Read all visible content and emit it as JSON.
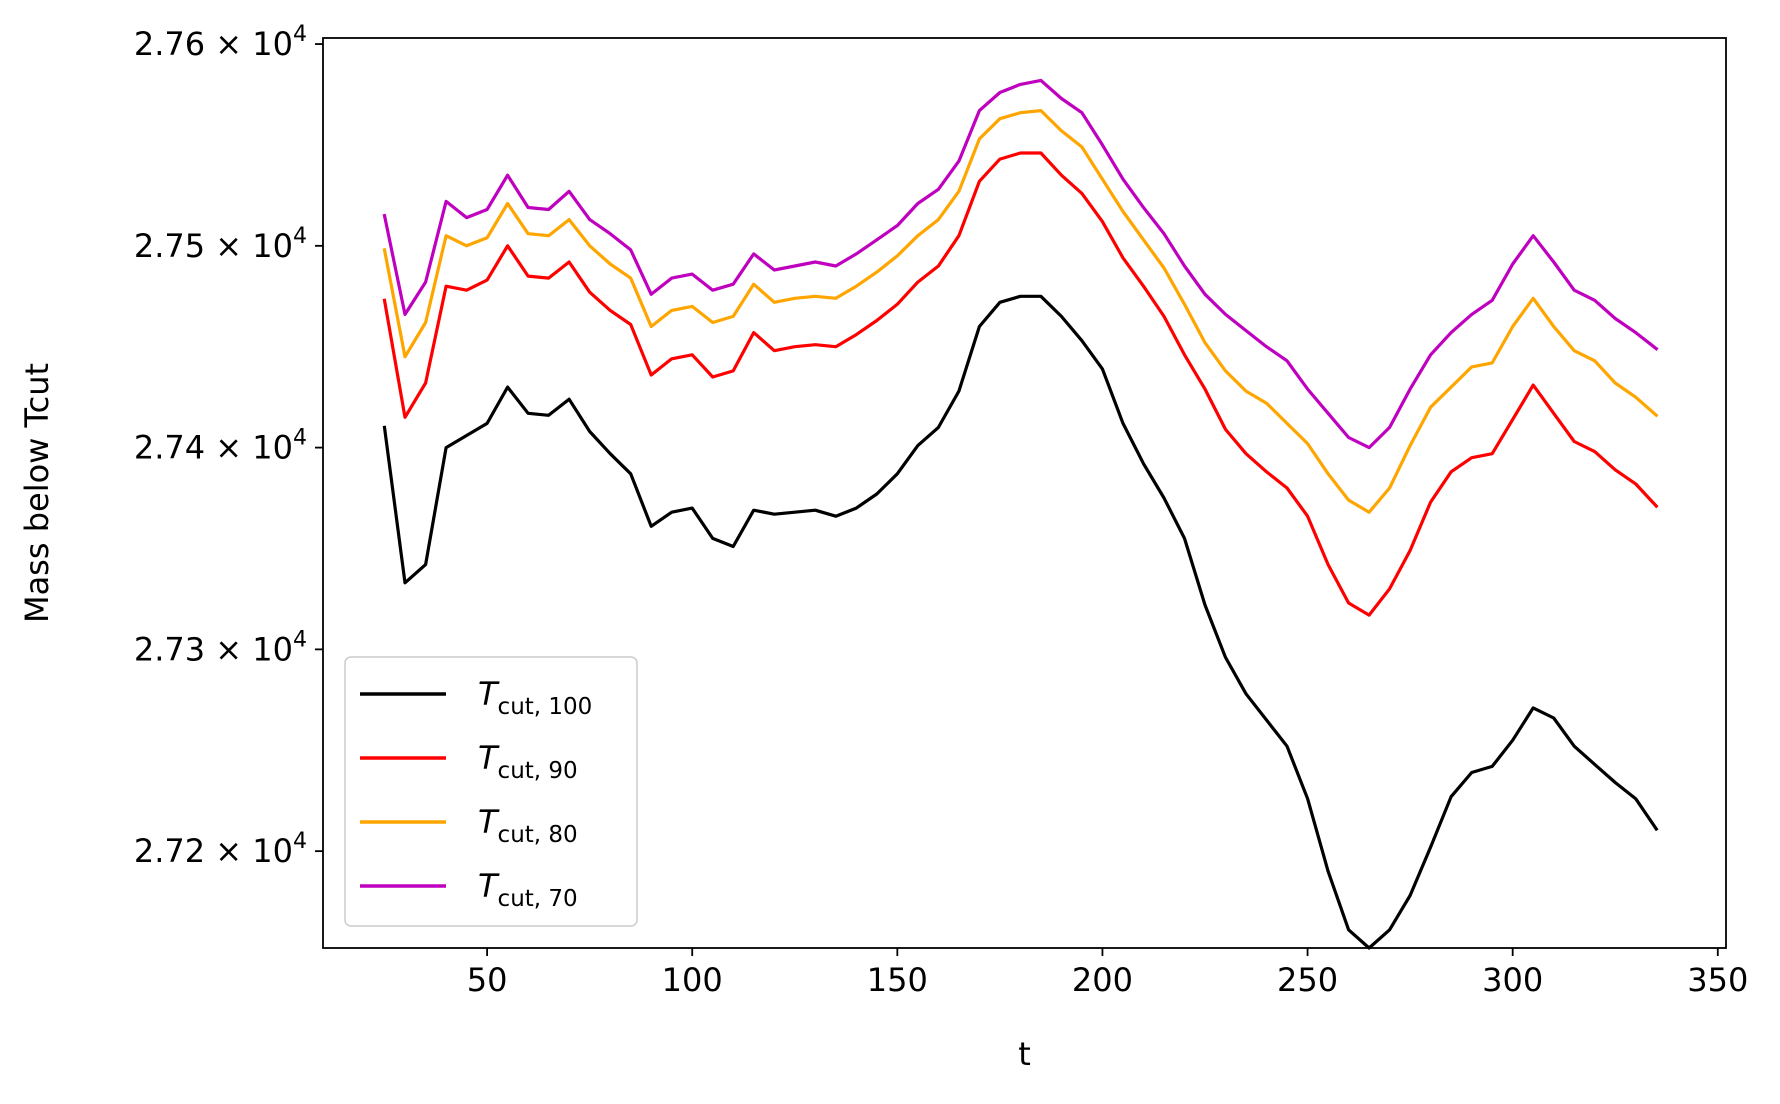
{
  "chart_data": {
    "type": "line",
    "title": "",
    "xlabel": "t",
    "ylabel": "Mass below Tcut",
    "xlim": [
      10,
      352
    ],
    "ylim": [
      27152,
      27603
    ],
    "xticks": [
      50,
      100,
      150,
      200,
      250,
      300,
      350
    ],
    "xtick_labels": [
      "50",
      "100",
      "150",
      "200",
      "250",
      "300",
      "350"
    ],
    "yticks": [
      27200,
      27300,
      27400,
      27500,
      27600
    ],
    "ytick_labels": [
      {
        "mantissa": "2.72",
        "times": "×",
        "base": "10",
        "exp": "4"
      },
      {
        "mantissa": "2.73",
        "times": "×",
        "base": "10",
        "exp": "4"
      },
      {
        "mantissa": "2.74",
        "times": "×",
        "base": "10",
        "exp": "4"
      },
      {
        "mantissa": "2.75",
        "times": "×",
        "base": "10",
        "exp": "4"
      },
      {
        "mantissa": "2.76",
        "times": "×",
        "base": "10",
        "exp": "4"
      }
    ],
    "grid": false,
    "legend_position": "lower-left",
    "x": [
      25,
      30,
      35,
      40,
      45,
      50,
      55,
      60,
      65,
      70,
      75,
      80,
      85,
      90,
      95,
      100,
      105,
      110,
      115,
      120,
      125,
      130,
      135,
      140,
      145,
      150,
      155,
      160,
      165,
      170,
      175,
      180,
      185,
      190,
      195,
      200,
      205,
      210,
      215,
      220,
      225,
      230,
      235,
      240,
      245,
      250,
      255,
      260,
      265,
      270,
      275,
      280,
      285,
      290,
      295,
      300,
      305,
      310,
      315,
      320,
      325,
      330,
      335
    ],
    "series": [
      {
        "name": "T",
        "sub": "cut, 100",
        "color": "#000000",
        "values": [
          27410,
          27333,
          27342,
          27400,
          27406,
          27412,
          27430,
          27417,
          27416,
          27424,
          27408,
          27397,
          27387,
          27361,
          27368,
          27370,
          27355,
          27351,
          27369,
          27367,
          27368,
          27369,
          27366,
          27370,
          27377,
          27387,
          27401,
          27410,
          27428,
          27460,
          27472,
          27475,
          27475,
          27465,
          27453,
          27439,
          27412,
          27392,
          27375,
          27355,
          27322,
          27296,
          27278,
          27265,
          27252,
          27226,
          27190,
          27161,
          27152,
          27161,
          27178,
          27202,
          27227,
          27239,
          27242,
          27255,
          27271,
          27266,
          27252,
          27243,
          27234,
          27226,
          27211
        ]
      },
      {
        "name": "T",
        "sub": "cut, 90",
        "color": "#ff0000",
        "values": [
          27473,
          27415,
          27432,
          27480,
          27478,
          27483,
          27500,
          27485,
          27484,
          27492,
          27477,
          27468,
          27461,
          27436,
          27444,
          27446,
          27435,
          27438,
          27457,
          27448,
          27450,
          27451,
          27450,
          27456,
          27463,
          27471,
          27482,
          27490,
          27505,
          27532,
          27543,
          27546,
          27546,
          27535,
          27526,
          27512,
          27494,
          27480,
          27465,
          27446,
          27429,
          27409,
          27397,
          27388,
          27380,
          27366,
          27342,
          27323,
          27317,
          27330,
          27349,
          27373,
          27388,
          27395,
          27397,
          27414,
          27431,
          27417,
          27403,
          27398,
          27389,
          27382,
          27371
        ]
      },
      {
        "name": "T",
        "sub": "cut, 80",
        "color": "#ffa500",
        "values": [
          27498,
          27445,
          27462,
          27505,
          27500,
          27504,
          27521,
          27506,
          27505,
          27513,
          27500,
          27491,
          27484,
          27460,
          27468,
          27470,
          27462,
          27465,
          27481,
          27472,
          27474,
          27475,
          27474,
          27480,
          27487,
          27495,
          27505,
          27513,
          27527,
          27553,
          27563,
          27566,
          27567,
          27557,
          27549,
          27533,
          27517,
          27503,
          27489,
          27471,
          27452,
          27438,
          27428,
          27422,
          27412,
          27402,
          27387,
          27374,
          27368,
          27380,
          27401,
          27420,
          27430,
          27440,
          27442,
          27460,
          27474,
          27460,
          27448,
          27443,
          27432,
          27425,
          27416
        ]
      },
      {
        "name": "T",
        "sub": "cut, 70",
        "color": "#bf00bf",
        "values": [
          27515,
          27466,
          27482,
          27522,
          27514,
          27518,
          27535,
          27519,
          27518,
          27527,
          27513,
          27506,
          27498,
          27476,
          27484,
          27486,
          27478,
          27481,
          27496,
          27488,
          27490,
          27492,
          27490,
          27496,
          27503,
          27510,
          27521,
          27528,
          27542,
          27567,
          27576,
          27580,
          27582,
          27573,
          27566,
          27550,
          27533,
          27519,
          27506,
          27490,
          27476,
          27466,
          27458,
          27450,
          27443,
          27429,
          27417,
          27405,
          27400,
          27410,
          27429,
          27446,
          27457,
          27466,
          27473,
          27491,
          27505,
          27492,
          27478,
          27473,
          27464,
          27457,
          27449
        ]
      }
    ]
  }
}
